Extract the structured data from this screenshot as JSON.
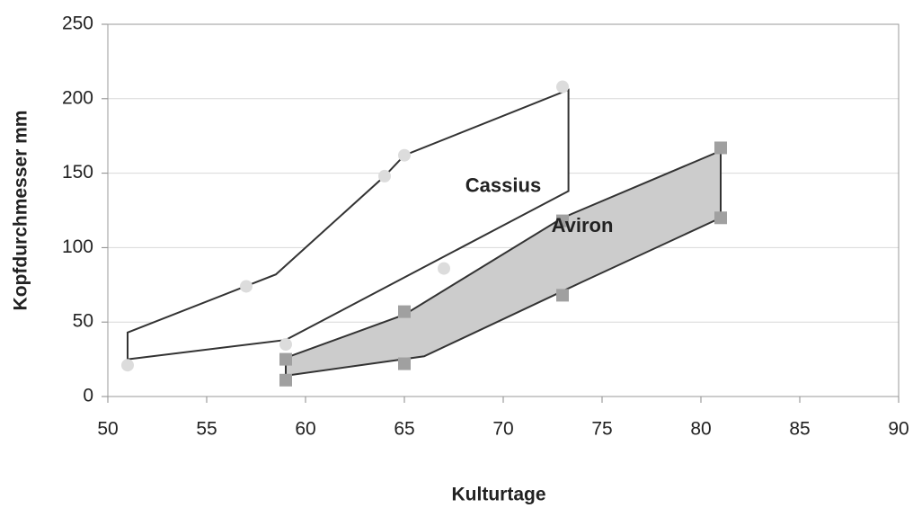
{
  "chart_data": {
    "type": "scatter",
    "xlabel": "Kulturtage",
    "ylabel": "Kopfdurchmesser mm",
    "xlim": [
      50,
      90
    ],
    "xticks": [
      50,
      55,
      60,
      65,
      70,
      75,
      80,
      85,
      90
    ],
    "ylim": [
      0,
      250
    ],
    "yticks": [
      0,
      50,
      100,
      150,
      200,
      250
    ],
    "grid": true,
    "series": [
      {
        "name": "Cassius",
        "color": "#dcdcdc",
        "marker": "circle",
        "envelope_fill": "#ffffff",
        "x": [
          51,
          57,
          59,
          64,
          65,
          67,
          73
        ],
        "values": [
          21,
          74,
          35,
          148,
          162,
          86,
          208
        ],
        "envelope_x": [
          51,
          58.5,
          64,
          65,
          73.3,
          73.3,
          59,
          51
        ],
        "envelope_y": [
          43,
          82,
          148,
          162,
          206,
          138,
          38,
          25
        ]
      },
      {
        "name": "Aviron",
        "color": "#a0a0a0",
        "marker": "square",
        "envelope_fill": "#cccccc",
        "x": [
          59,
          59,
          65,
          65,
          73,
          73,
          81,
          81
        ],
        "values": [
          25,
          11,
          57,
          22,
          118,
          68,
          167,
          120
        ],
        "envelope_x": [
          59,
          65,
          73,
          81,
          81,
          74,
          66,
          59
        ],
        "envelope_y": [
          26,
          55,
          120,
          165,
          120,
          77,
          27,
          14
        ]
      }
    ]
  }
}
